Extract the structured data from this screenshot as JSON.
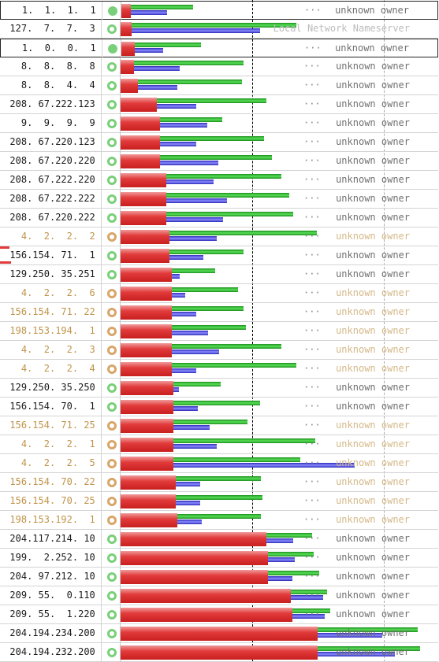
{
  "columns": {
    "status_legend": {
      "ok_filled": "#7ad07a",
      "ok_ring": "#7ad07a",
      "warn_ring": "#d9a66a"
    },
    "colors": {
      "cached_bar": "#e23b3b",
      "uncached_bar": "#3b9e3b",
      "dotcom_bar": "#5555dd"
    }
  },
  "rows": [
    {
      "ip": "  1.  1.  1.  1",
      "status": "ok-filled",
      "owner": "unknown owner",
      "dots": true,
      "highlight": true,
      "ip_color": "black",
      "owner_color": "normal",
      "red": 0.05,
      "green": 0.38,
      "blue": 0.24
    },
    {
      "ip": "127.  7.  7.  3",
      "status": "ok-ring",
      "owner": "Local Network Nameserver",
      "dots": false,
      "highlight": false,
      "ip_color": "black",
      "owner_color": "light",
      "red": 0.06,
      "green": 0.93,
      "blue": 0.74
    },
    {
      "ip": "  1.  0.  0.  1",
      "status": "ok-filled",
      "owner": "unknown owner",
      "dots": true,
      "highlight": true,
      "ip_color": "black",
      "owner_color": "normal",
      "red": 0.07,
      "green": 0.42,
      "blue": 0.22
    },
    {
      "ip": "  8.  8.  8.  8",
      "status": "ok-ring",
      "owner": "unknown owner",
      "dots": true,
      "highlight": false,
      "ip_color": "black",
      "owner_color": "normal",
      "red": 0.07,
      "green": 0.65,
      "blue": 0.31
    },
    {
      "ip": "  8.  8.  4.  4",
      "status": "ok-ring",
      "owner": "unknown owner",
      "dots": true,
      "highlight": false,
      "ip_color": "black",
      "owner_color": "normal",
      "red": 0.09,
      "green": 0.64,
      "blue": 0.3
    },
    {
      "ip": "208. 67.222.123",
      "status": "ok-ring",
      "owner": "unknown owner",
      "dots": true,
      "highlight": false,
      "ip_color": "black",
      "owner_color": "normal",
      "red": 0.19,
      "green": 0.77,
      "blue": 0.4
    },
    {
      "ip": "  9.  9.  9.  9",
      "status": "ok-ring",
      "owner": "unknown owner",
      "dots": true,
      "highlight": false,
      "ip_color": "black",
      "owner_color": "normal",
      "red": 0.21,
      "green": 0.54,
      "blue": 0.46
    },
    {
      "ip": "208. 67.220.123",
      "status": "ok-ring",
      "owner": "unknown owner",
      "dots": true,
      "highlight": false,
      "ip_color": "black",
      "owner_color": "normal",
      "red": 0.21,
      "green": 0.76,
      "blue": 0.4
    },
    {
      "ip": "208. 67.220.220",
      "status": "ok-ring",
      "owner": "unknown owner",
      "dots": true,
      "highlight": false,
      "ip_color": "black",
      "owner_color": "normal",
      "red": 0.21,
      "green": 0.8,
      "blue": 0.52
    },
    {
      "ip": "208. 67.222.220",
      "status": "ok-ring",
      "owner": "unknown owner",
      "dots": true,
      "highlight": false,
      "ip_color": "black",
      "owner_color": "normal",
      "red": 0.24,
      "green": 0.85,
      "blue": 0.49
    },
    {
      "ip": "208. 67.222.222",
      "status": "ok-ring",
      "owner": "unknown owner",
      "dots": true,
      "highlight": false,
      "ip_color": "black",
      "owner_color": "normal",
      "red": 0.24,
      "green": 0.89,
      "blue": 0.56
    },
    {
      "ip": "208. 67.220.222",
      "status": "ok-ring",
      "owner": "unknown owner",
      "dots": true,
      "highlight": false,
      "ip_color": "black",
      "owner_color": "normal",
      "red": 0.24,
      "green": 0.91,
      "blue": 0.54
    },
    {
      "ip": "  4.  2.  2.  2",
      "status": "warn-ring",
      "owner": "unknown owner",
      "dots": true,
      "highlight": false,
      "ip_color": "yellow",
      "owner_color": "yellow",
      "red": 0.26,
      "green": 1.04,
      "blue": 0.51
    },
    {
      "ip": "156.154. 71.  1",
      "status": "ok-ring",
      "owner": "unknown owner",
      "dots": true,
      "highlight": false,
      "ip_color": "black",
      "owner_color": "normal",
      "red": 0.26,
      "green": 0.65,
      "blue": 0.44
    },
    {
      "ip": "129.250. 35.251",
      "status": "ok-ring",
      "owner": "unknown owner",
      "dots": true,
      "highlight": false,
      "ip_color": "black",
      "owner_color": "normal",
      "red": 0.27,
      "green": 0.5,
      "blue": 0.31
    },
    {
      "ip": "  4.  2.  2.  6",
      "status": "warn-ring",
      "owner": "unknown owner",
      "dots": true,
      "highlight": false,
      "ip_color": "yellow",
      "owner_color": "yellow",
      "red": 0.27,
      "green": 0.62,
      "blue": 0.34
    },
    {
      "ip": "156.154. 71. 22",
      "status": "warn-ring",
      "owner": "unknown owner",
      "dots": true,
      "highlight": false,
      "ip_color": "yellow",
      "owner_color": "yellow",
      "red": 0.27,
      "green": 0.65,
      "blue": 0.4
    },
    {
      "ip": "198.153.194.  1",
      "status": "warn-ring",
      "owner": "unknown owner",
      "dots": true,
      "highlight": false,
      "ip_color": "yellow",
      "owner_color": "yellow",
      "red": 0.27,
      "green": 0.66,
      "blue": 0.46
    },
    {
      "ip": "  4.  2.  2.  3",
      "status": "warn-ring",
      "owner": "unknown owner",
      "dots": true,
      "highlight": false,
      "ip_color": "yellow",
      "owner_color": "yellow",
      "red": 0.27,
      "green": 0.85,
      "blue": 0.52
    },
    {
      "ip": "  4.  2.  2.  4",
      "status": "warn-ring",
      "owner": "unknown owner",
      "dots": true,
      "highlight": false,
      "ip_color": "yellow",
      "owner_color": "yellow",
      "red": 0.27,
      "green": 0.93,
      "blue": 0.4
    },
    {
      "ip": "129.250. 35.250",
      "status": "ok-ring",
      "owner": "unknown owner",
      "dots": true,
      "highlight": false,
      "ip_color": "black",
      "owner_color": "normal",
      "red": 0.28,
      "green": 0.53,
      "blue": 0.31
    },
    {
      "ip": "156.154. 70.  1",
      "status": "ok-ring",
      "owner": "unknown owner",
      "dots": true,
      "highlight": false,
      "ip_color": "black",
      "owner_color": "normal",
      "red": 0.28,
      "green": 0.74,
      "blue": 0.41
    },
    {
      "ip": "156.154. 71. 25",
      "status": "warn-ring",
      "owner": "unknown owner",
      "dots": true,
      "highlight": false,
      "ip_color": "yellow",
      "owner_color": "yellow",
      "red": 0.28,
      "green": 0.67,
      "blue": 0.47
    },
    {
      "ip": "  4.  2.  2.  1",
      "status": "warn-ring",
      "owner": "unknown owner",
      "dots": true,
      "highlight": false,
      "ip_color": "yellow",
      "owner_color": "yellow",
      "red": 0.28,
      "green": 1.03,
      "blue": 0.51
    },
    {
      "ip": "  4.  2.  2.  5",
      "status": "warn-ring",
      "owner": "unknown owner",
      "dots": true,
      "highlight": false,
      "ip_color": "yellow",
      "owner_color": "yellow",
      "red": 0.28,
      "green": 0.95,
      "blue": 1.24
    },
    {
      "ip": "156.154. 70. 22",
      "status": "warn-ring",
      "owner": "unknown owner",
      "dots": true,
      "highlight": false,
      "ip_color": "yellow",
      "owner_color": "yellow",
      "red": 0.29,
      "green": 0.74,
      "blue": 0.42
    },
    {
      "ip": "156.154. 70. 25",
      "status": "warn-ring",
      "owner": "unknown owner",
      "dots": true,
      "highlight": false,
      "ip_color": "yellow",
      "owner_color": "yellow",
      "red": 0.29,
      "green": 0.75,
      "blue": 0.42
    },
    {
      "ip": "198.153.192.  1",
      "status": "warn-ring",
      "owner": "unknown owner",
      "dots": true,
      "highlight": false,
      "ip_color": "yellow",
      "owner_color": "yellow",
      "red": 0.3,
      "green": 0.74,
      "blue": 0.43
    },
    {
      "ip": "204.117.214. 10",
      "status": "ok-ring",
      "owner": "unknown owner",
      "dots": true,
      "highlight": false,
      "ip_color": "black",
      "owner_color": "normal",
      "red": 0.77,
      "green": 1.01,
      "blue": 0.91
    },
    {
      "ip": "199.  2.252. 10",
      "status": "ok-ring",
      "owner": "unknown owner",
      "dots": true,
      "highlight": false,
      "ip_color": "black",
      "owner_color": "normal",
      "red": 0.78,
      "green": 1.02,
      "blue": 0.92
    },
    {
      "ip": "204. 97.212. 10",
      "status": "ok-ring",
      "owner": "unknown owner",
      "dots": true,
      "highlight": false,
      "ip_color": "black",
      "owner_color": "normal",
      "red": 0.78,
      "green": 1.05,
      "blue": 0.91
    },
    {
      "ip": "209. 55.  0.110",
      "status": "ok-ring",
      "owner": "unknown owner",
      "dots": true,
      "highlight": false,
      "ip_color": "black",
      "owner_color": "normal",
      "red": 0.9,
      "green": 1.09,
      "blue": 1.07
    },
    {
      "ip": "209. 55.  1.220",
      "status": "ok-ring",
      "owner": "unknown owner",
      "dots": true,
      "highlight": false,
      "ip_color": "black",
      "owner_color": "normal",
      "red": 0.91,
      "green": 1.11,
      "blue": 1.08
    },
    {
      "ip": "204.194.234.200",
      "status": "ok-ring",
      "owner": "unknown owner",
      "dots": false,
      "highlight": false,
      "ip_color": "black",
      "owner_color": "normal",
      "red": 1.04,
      "green": 1.57,
      "blue": 1.38
    },
    {
      "ip": "204.194.232.200",
      "status": "ok-ring",
      "owner": "unknown owner",
      "dots": false,
      "highlight": false,
      "ip_color": "black",
      "owner_color": "normal",
      "red": 1.04,
      "green": 1.58,
      "blue": 1.45
    }
  ]
}
